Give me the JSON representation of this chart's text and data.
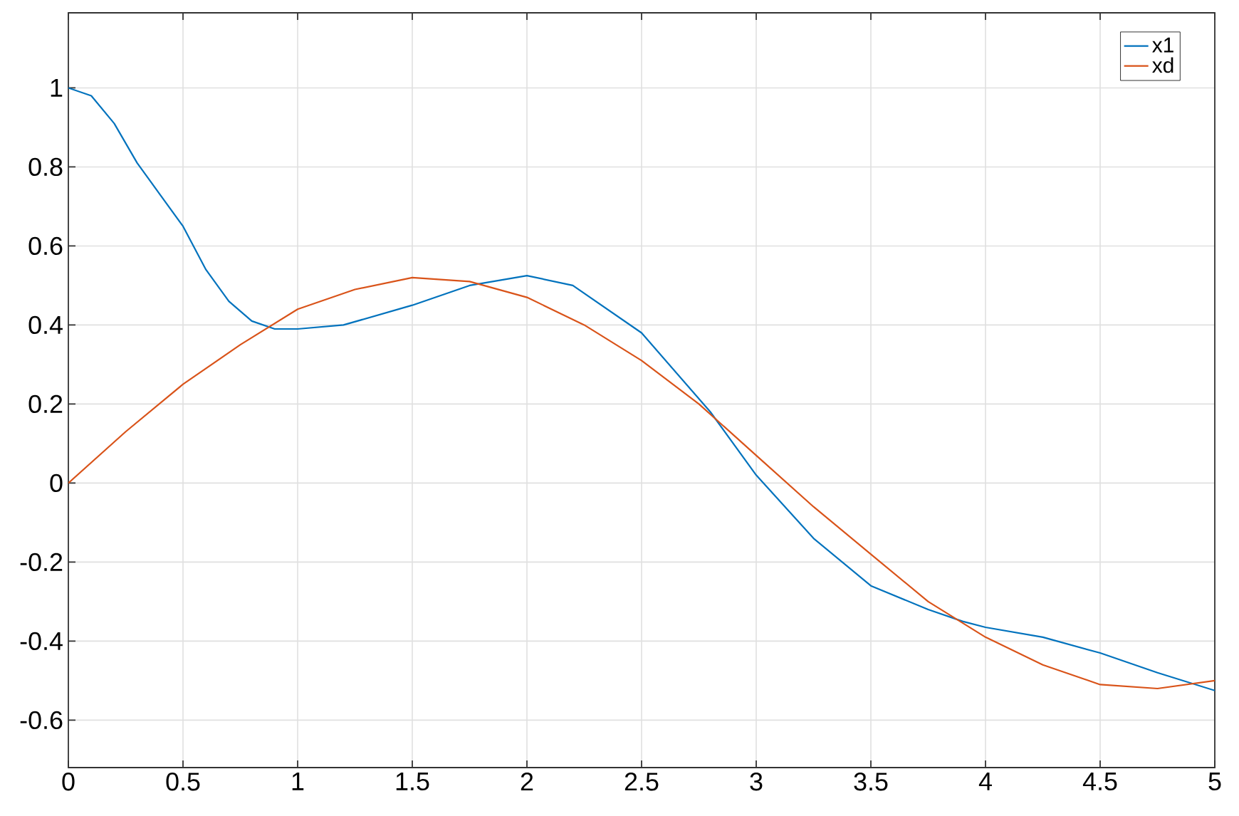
{
  "chart_data": {
    "type": "line",
    "xlim": [
      0,
      5
    ],
    "ylim": [
      -0.72,
      1.19
    ],
    "xticks": [
      0,
      0.5,
      1,
      1.5,
      2,
      2.5,
      3,
      3.5,
      4,
      4.5,
      5
    ],
    "yticks": [
      -0.6,
      -0.4,
      -0.2,
      0,
      0.2,
      0.4,
      0.6,
      0.8,
      1
    ],
    "grid": true,
    "legend": "top right",
    "marker": "none",
    "line_style": "solid",
    "series": [
      {
        "name": "x1",
        "color": "#0072bd",
        "x": [
          0,
          0.1,
          0.2,
          0.3,
          0.4,
          0.5,
          0.6,
          0.7,
          0.8,
          0.9,
          1.0,
          1.2,
          1.5,
          1.75,
          2.0,
          2.2,
          2.5,
          2.8,
          3.0,
          3.25,
          3.5,
          3.75,
          3.9,
          4.0,
          4.25,
          4.5,
          4.75,
          5.0
        ],
        "values": [
          1.0,
          0.98,
          0.91,
          0.81,
          0.73,
          0.65,
          0.54,
          0.46,
          0.41,
          0.39,
          0.39,
          0.4,
          0.45,
          0.5,
          0.525,
          0.5,
          0.38,
          0.18,
          0.02,
          -0.14,
          -0.26,
          -0.32,
          -0.35,
          -0.365,
          -0.39,
          -0.43,
          -0.48,
          -0.525
        ]
      },
      {
        "name": "xd",
        "color": "#d95319",
        "x": [
          0,
          0.25,
          0.5,
          0.75,
          1.0,
          1.25,
          1.5,
          1.75,
          2.0,
          2.25,
          2.5,
          2.75,
          3.0,
          3.25,
          3.5,
          3.75,
          4.0,
          4.25,
          4.5,
          4.75,
          5.0
        ],
        "values": [
          0,
          0.13,
          0.25,
          0.35,
          0.44,
          0.49,
          0.52,
          0.51,
          0.47,
          0.4,
          0.31,
          0.2,
          0.07,
          -0.06,
          -0.18,
          -0.3,
          -0.39,
          -0.46,
          -0.51,
          -0.52,
          -0.5
        ]
      }
    ]
  }
}
